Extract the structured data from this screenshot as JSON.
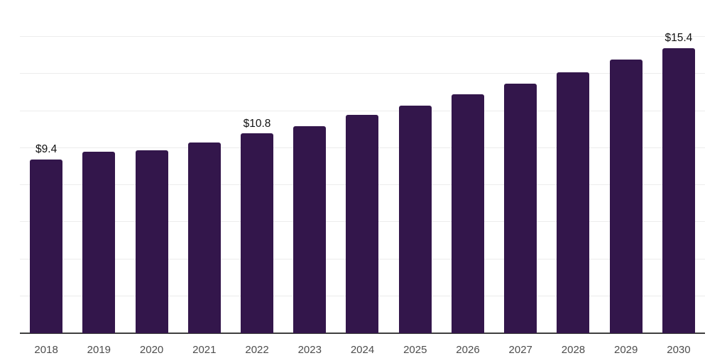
{
  "chart_data": {
    "type": "bar",
    "title": "",
    "xlabel": "",
    "ylabel": "",
    "categories": [
      "2018",
      "2019",
      "2020",
      "2021",
      "2022",
      "2023",
      "2024",
      "2025",
      "2026",
      "2027",
      "2028",
      "2029",
      "2030"
    ],
    "values": [
      9.4,
      9.8,
      9.9,
      10.3,
      10.8,
      11.2,
      11.8,
      12.3,
      12.9,
      13.5,
      14.1,
      14.8,
      15.4
    ],
    "data_labels": {
      "2018": "$9.4",
      "2022": "$10.8",
      "2030": "$15.4"
    },
    "ylim": [
      0,
      18
    ],
    "gridline_step": 2,
    "grid": "horizontal",
    "y_axis_tick_labels": "none",
    "legend_position": "none",
    "colors": {
      "bar": "#33164b",
      "gridline": "#ececec",
      "baseline": "#3f3f3f",
      "tick_label": "#4d4d4d",
      "data_label": "#111111",
      "background": "#ffffff"
    }
  }
}
